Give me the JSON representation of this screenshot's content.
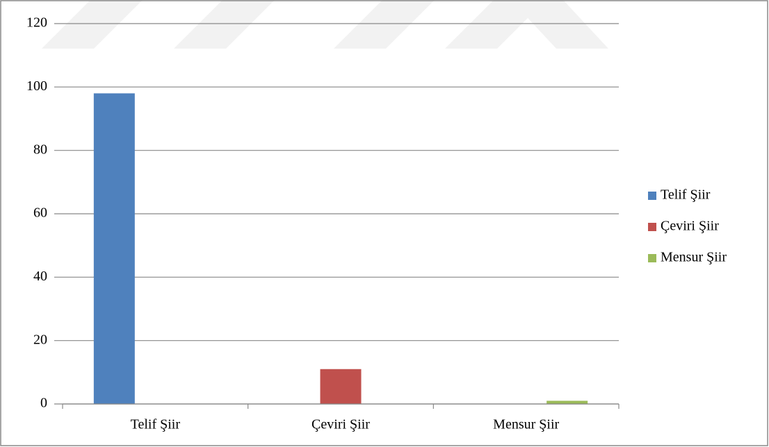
{
  "chart_data": {
    "type": "bar",
    "categories": [
      "Telif Şiir",
      "Çeviri Şiir",
      "Mensur Şiir"
    ],
    "series": [
      {
        "name": "Telif Şiir",
        "color": "#4f81bd",
        "values": [
          98,
          null,
          null
        ]
      },
      {
        "name": "Çeviri Şiir",
        "color": "#c0504d",
        "values": [
          null,
          11,
          null
        ]
      },
      {
        "name": "Mensur Şiir",
        "color": "#9bbb59",
        "values": [
          null,
          null,
          1
        ]
      }
    ],
    "ylim": [
      0,
      120
    ],
    "yticks": [
      0,
      20,
      40,
      60,
      80,
      100,
      120
    ],
    "grid": true,
    "legend": "right"
  }
}
